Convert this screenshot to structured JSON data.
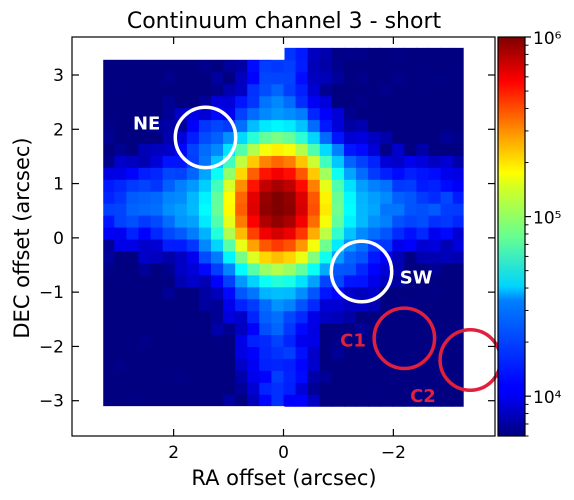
{
  "chart_data": {
    "type": "heatmap",
    "title": "Continuum channel 3 - short",
    "xlabel": "RA offset (arcsec)",
    "ylabel": "DEC offset (arcsec)",
    "xlim": [
      3.85,
      -3.85
    ],
    "ylim": [
      -3.65,
      3.7
    ],
    "x_ticks": [
      2,
      0,
      -2
    ],
    "x_tick_labels": [
      "2",
      "0",
      "−2"
    ],
    "y_ticks": [
      3,
      2,
      1,
      0,
      -1,
      -2,
      -3
    ],
    "y_tick_labels": [
      "3",
      "2",
      "1",
      "0",
      "−1",
      "−2",
      "−3"
    ],
    "colorbar": {
      "scale": "log",
      "range": [
        6000,
        1000000
      ],
      "tick_values": [
        10000,
        100000,
        1000000
      ],
      "tick_labels": [
        "10⁴",
        "10⁵",
        "10⁶"
      ],
      "colormap": "jet"
    },
    "source": {
      "x": 0.1,
      "y": 0.6,
      "peak": 1000000
    },
    "grid": false,
    "legend": "none",
    "annotations": [
      {
        "label": "NE",
        "x": 1.42,
        "y": 1.85,
        "radius": 0.5,
        "color": "#ffffff"
      },
      {
        "label": "SW",
        "x": -1.42,
        "y": -0.62,
        "radius": 0.5,
        "color": "#ffffff"
      },
      {
        "label": "C1",
        "x": -2.2,
        "y": -1.85,
        "radius": 0.5,
        "color": "#e0203c"
      },
      {
        "label": "C2",
        "x": -3.4,
        "y": -2.25,
        "radius": 0.5,
        "color": "#e0203c"
      }
    ]
  }
}
